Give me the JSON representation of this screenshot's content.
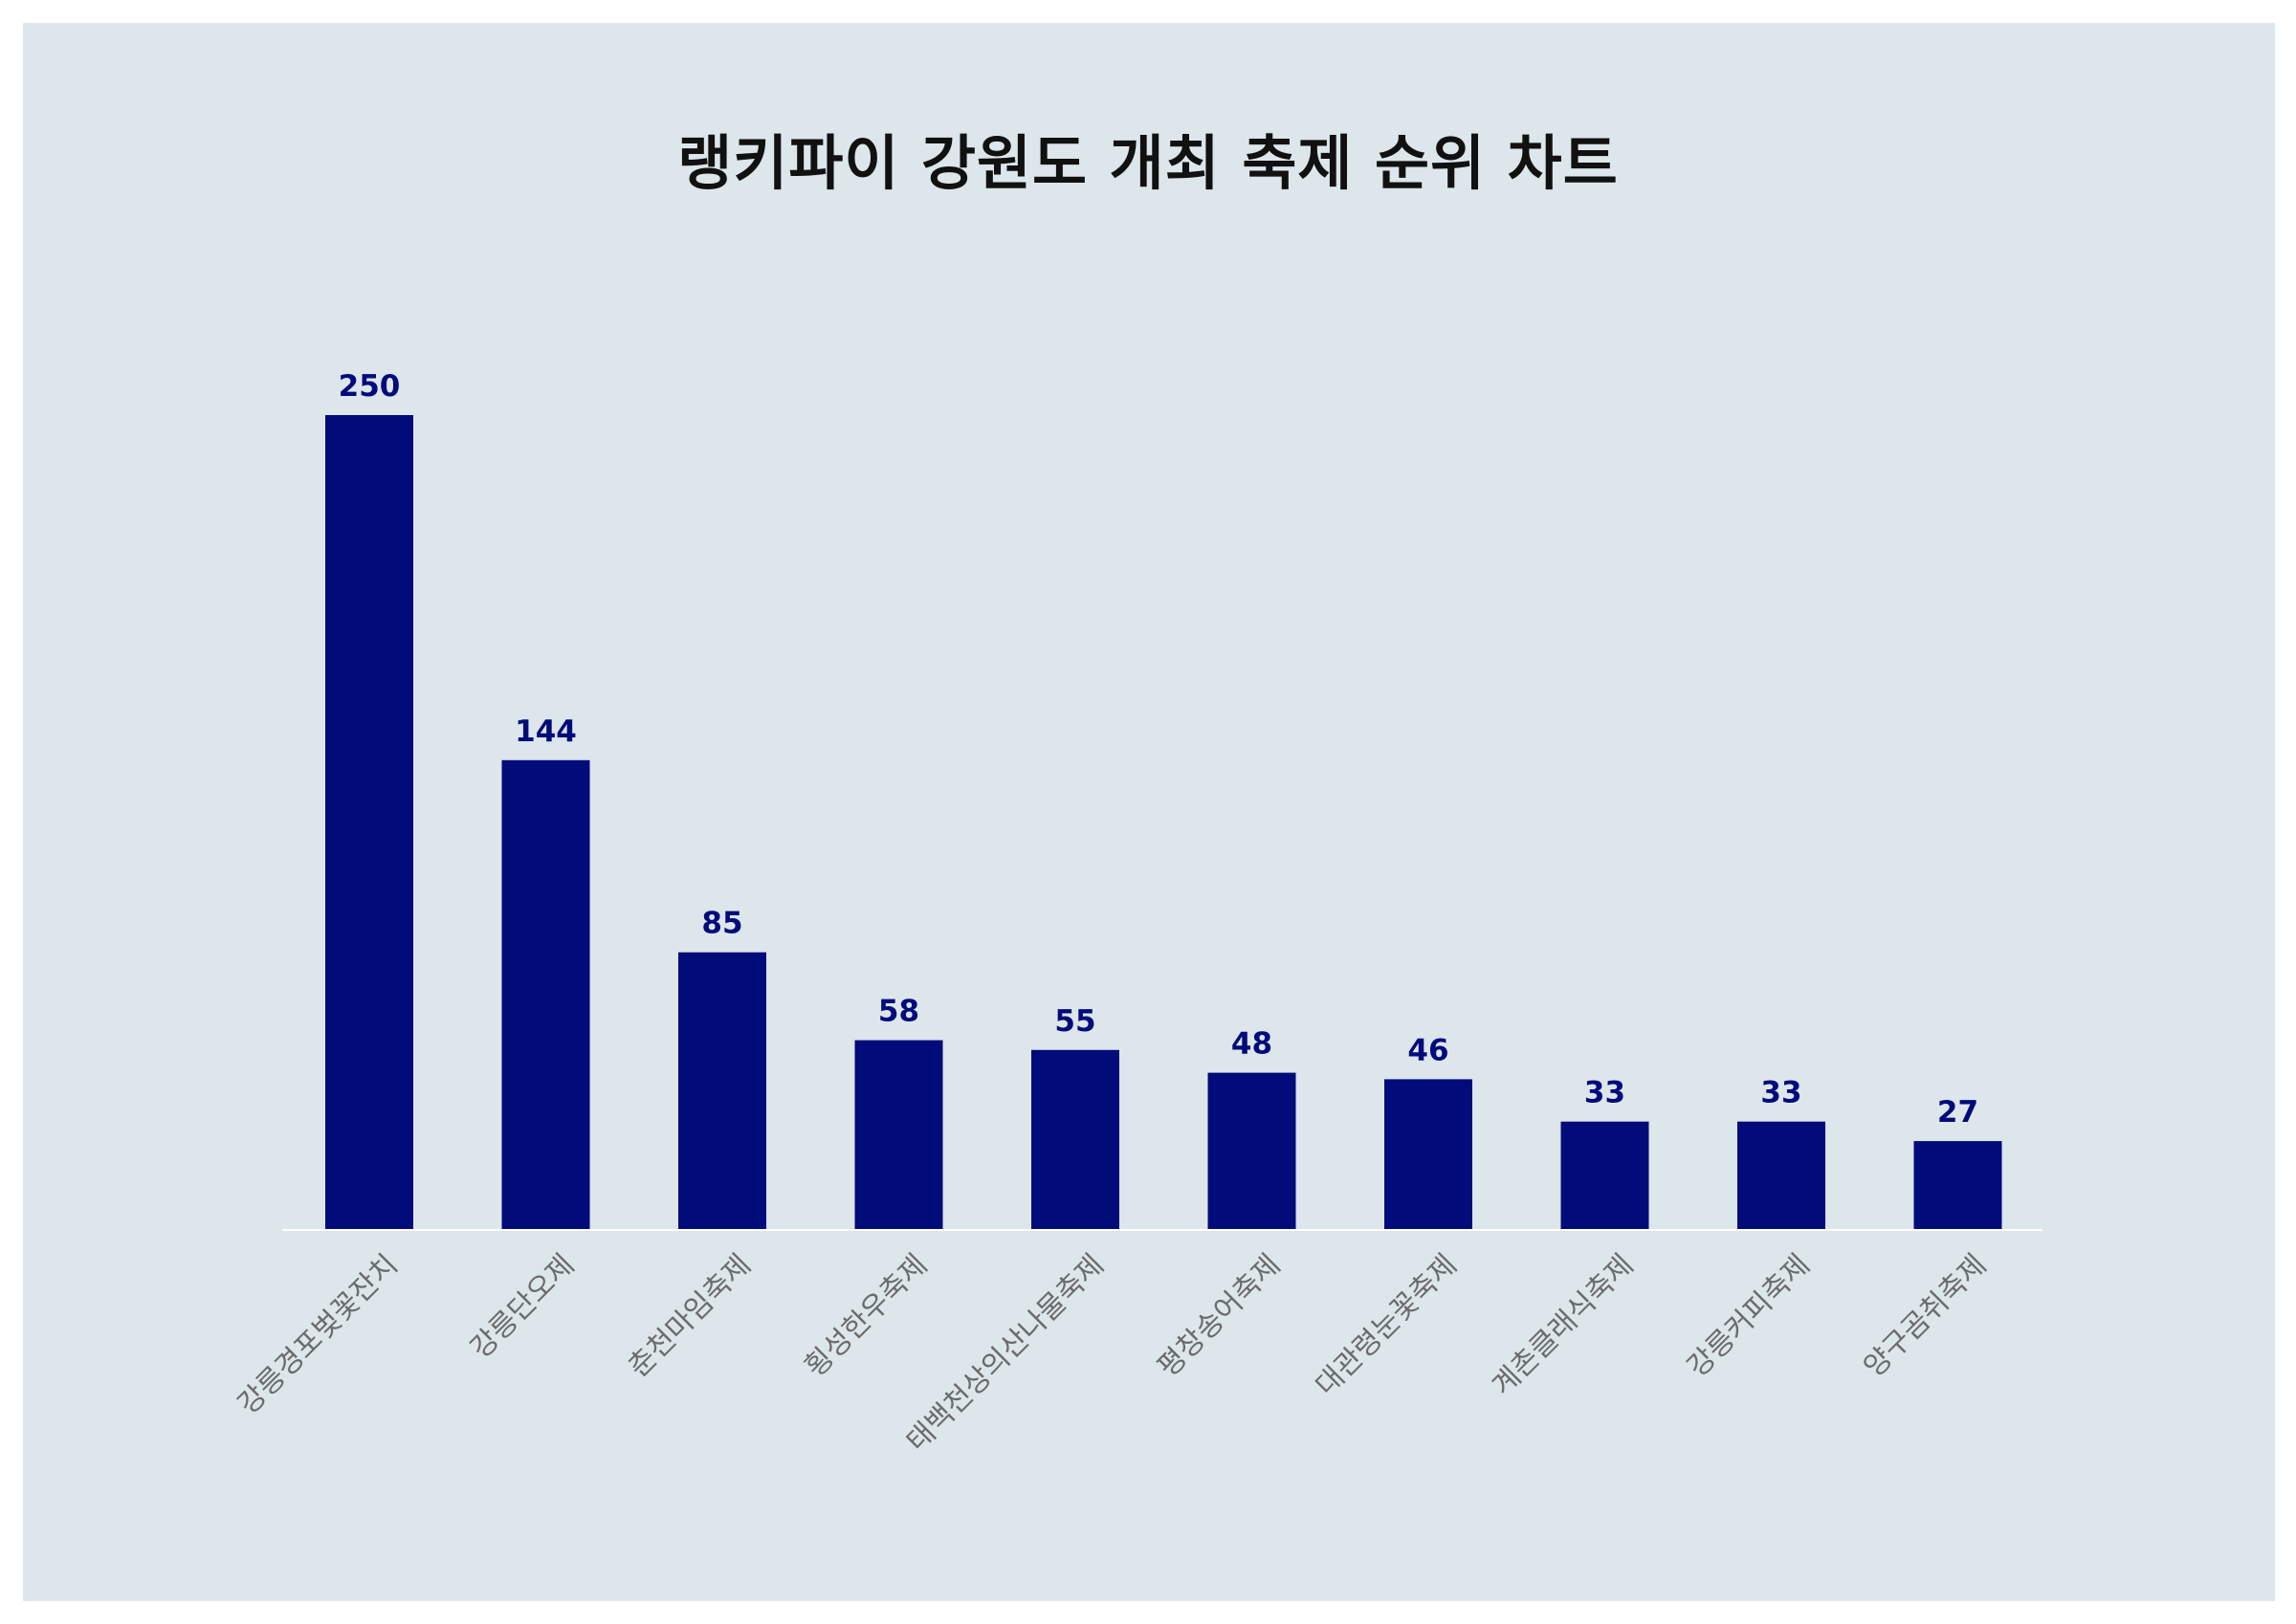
{
  "chart_data": {
    "type": "bar",
    "title": "랭키파이 강원도 개최 축제 순위 차트",
    "categories": [
      "강릉경포벚꽃잔치",
      "강릉단오제",
      "춘천마임축제",
      "횡성한우축제",
      "태백천상의산나물축제",
      "평창송어축제",
      "대관령눈꽃축제",
      "계촌클래식축제",
      "강릉커피축제",
      "양구곰취축제"
    ],
    "values": [
      250,
      144,
      85,
      58,
      55,
      48,
      46,
      33,
      33,
      27
    ],
    "xlabel": "",
    "ylabel": "",
    "ylim": [
      0,
      250
    ],
    "grid": false,
    "legend": "none",
    "colors": {
      "bar": "#020b7a",
      "background": "#dce6eb",
      "axis": "#ffffff",
      "data_label": "#020b7a",
      "tick_label": "#6b6b6b"
    }
  }
}
